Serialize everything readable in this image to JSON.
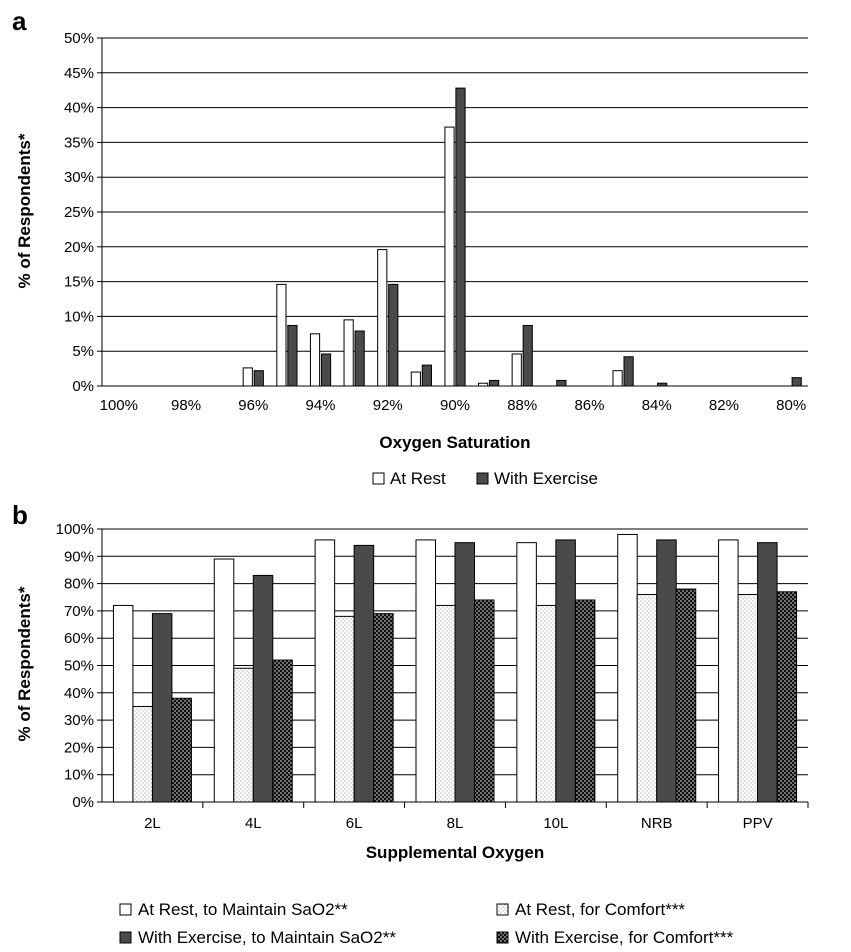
{
  "chart_data": [
    {
      "panel_label": "a",
      "type": "bar",
      "ylabel": "% of Respondents*",
      "xlabel": "Oxygen Saturation",
      "ylim": [
        0,
        50
      ],
      "ytick_labels": [
        "0%",
        "5%",
        "10%",
        "15%",
        "20%",
        "25%",
        "30%",
        "35%",
        "40%",
        "45%",
        "50%"
      ],
      "categories": [
        "100%",
        "99%",
        "98%",
        "97%",
        "96%",
        "95%",
        "94%",
        "93%",
        "92%",
        "91%",
        "90%",
        "89%",
        "88%",
        "87%",
        "86%",
        "85%",
        "84%",
        "83%",
        "82%",
        "81%",
        "80%"
      ],
      "xtick_labels": [
        "100%",
        "98%",
        "96%",
        "94%",
        "92%",
        "90%",
        "88%",
        "86%",
        "84%",
        "82%",
        "80%"
      ],
      "series": [
        {
          "name": "At Rest",
          "values": [
            0,
            0,
            0,
            0,
            2.6,
            14.6,
            7.5,
            9.5,
            19.6,
            2.0,
            37.2,
            0.4,
            4.6,
            0,
            0,
            2.2,
            0,
            0,
            0,
            0,
            0
          ]
        },
        {
          "name": "With Exercise",
          "values": [
            0,
            0,
            0,
            0,
            2.2,
            8.7,
            4.6,
            7.9,
            14.6,
            3.0,
            42.8,
            0.8,
            8.7,
            0.8,
            0,
            4.2,
            0.4,
            0,
            0,
            0,
            1.2
          ]
        }
      ],
      "legend_position": "bottom",
      "grid": true
    },
    {
      "panel_label": "b",
      "type": "bar",
      "ylabel": "% of Respondents*",
      "xlabel": "Supplemental Oxygen",
      "ylim": [
        0,
        100
      ],
      "ytick_labels": [
        "0%",
        "10%",
        "20%",
        "30%",
        "40%",
        "50%",
        "60%",
        "70%",
        "80%",
        "90%",
        "100%"
      ],
      "categories": [
        "2L",
        "4L",
        "6L",
        "8L",
        "10L",
        "NRB",
        "PPV"
      ],
      "series": [
        {
          "name": "At Rest, to Maintain SaO2**",
          "values": [
            72,
            89,
            96,
            96,
            95,
            98,
            96
          ]
        },
        {
          "name": "At Rest, for Comfort***",
          "values": [
            35,
            49,
            68,
            72,
            72,
            76,
            76
          ]
        },
        {
          "name": "With Exercise, to Maintain SaO2**",
          "values": [
            69,
            83,
            94,
            95,
            96,
            96,
            95
          ]
        },
        {
          "name": "With Exercise, for Comfort***",
          "values": [
            38,
            52,
            69,
            74,
            74,
            78,
            77
          ]
        }
      ],
      "legend_position": "bottom",
      "grid": true
    }
  ]
}
